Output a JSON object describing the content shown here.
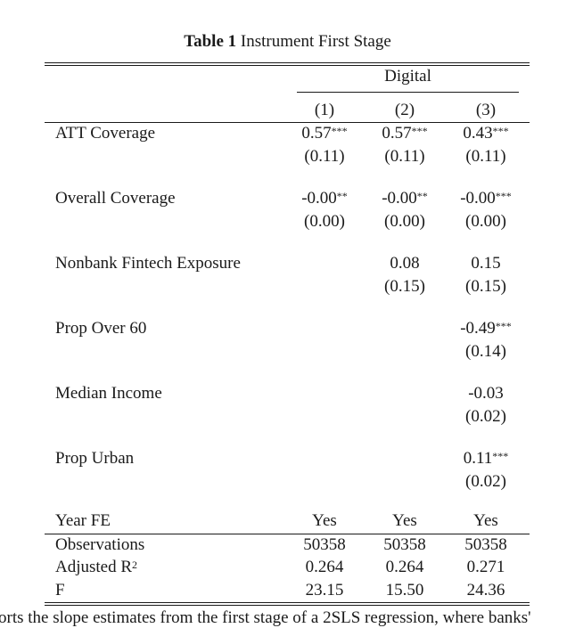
{
  "caption": {
    "label": "Table 1",
    "title": "Instrument First Stage"
  },
  "header": {
    "group": "Digital",
    "columns": [
      "(1)",
      "(2)",
      "(3)"
    ]
  },
  "rows": [
    {
      "label": "ATT Coverage",
      "coef": [
        {
          "v": "0.57",
          "s": "***"
        },
        {
          "v": "0.57",
          "s": "***"
        },
        {
          "v": "0.43",
          "s": "***"
        }
      ],
      "se": [
        "(0.11)",
        "(0.11)",
        "(0.11)"
      ]
    },
    {
      "label": "Overall Coverage",
      "coef": [
        {
          "v": "-0.00",
          "s": "**"
        },
        {
          "v": "-0.00",
          "s": "**"
        },
        {
          "v": "-0.00",
          "s": "***"
        }
      ],
      "se": [
        "(0.00)",
        "(0.00)",
        "(0.00)"
      ]
    },
    {
      "label": "Nonbank Fintech Exposure",
      "coef": [
        {
          "v": "",
          "s": ""
        },
        {
          "v": "0.08",
          "s": ""
        },
        {
          "v": "0.15",
          "s": ""
        }
      ],
      "se": [
        "",
        "(0.15)",
        "(0.15)"
      ]
    },
    {
      "label": "Prop Over 60",
      "coef": [
        {
          "v": "",
          "s": ""
        },
        {
          "v": "",
          "s": ""
        },
        {
          "v": "-0.49",
          "s": "***"
        }
      ],
      "se": [
        "",
        "",
        "(0.14)"
      ]
    },
    {
      "label": "Median Income",
      "coef": [
        {
          "v": "",
          "s": ""
        },
        {
          "v": "",
          "s": ""
        },
        {
          "v": "-0.03",
          "s": ""
        }
      ],
      "se": [
        "",
        "",
        "(0.02)"
      ]
    },
    {
      "label": "Prop Urban",
      "coef": [
        {
          "v": "",
          "s": ""
        },
        {
          "v": "",
          "s": ""
        },
        {
          "v": "0.11",
          "s": "***"
        }
      ],
      "se": [
        "",
        "",
        "(0.02)"
      ]
    }
  ],
  "fixed_effects": {
    "label": "Year FE",
    "values": [
      "Yes",
      "Yes",
      "Yes"
    ]
  },
  "stats": [
    {
      "label": "Observations",
      "values": [
        "50358",
        "50358",
        "50358"
      ]
    },
    {
      "label": "Adjusted R",
      "sup": "2",
      "values": [
        "0.264",
        "0.264",
        "0.271"
      ]
    },
    {
      "label": "F",
      "values": [
        "23.15",
        "15.50",
        "24.36"
      ]
    }
  ],
  "footer_text": "orts the slope estimates from the first stage of a 2SLS regression, where banks'"
}
